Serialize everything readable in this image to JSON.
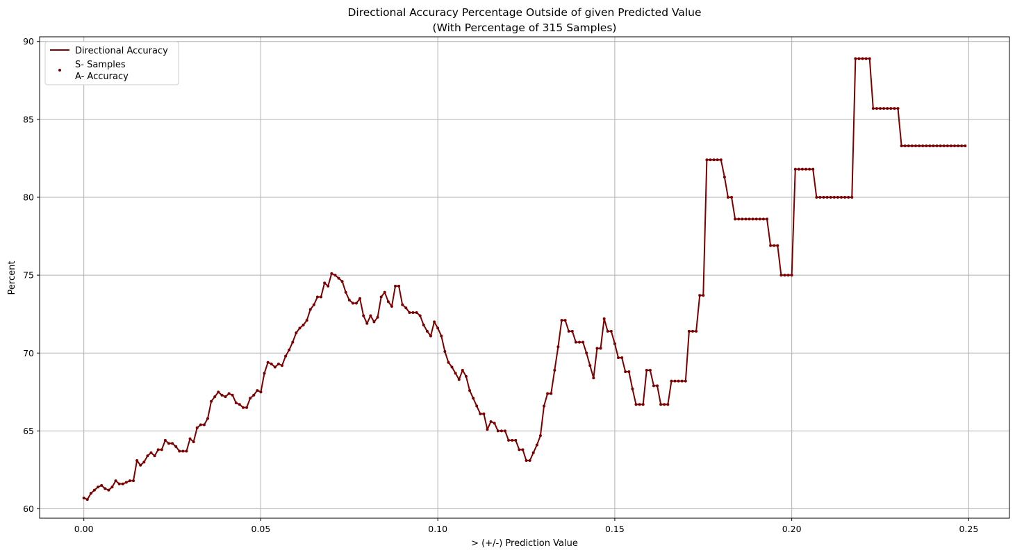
{
  "chart_data": {
    "type": "line",
    "title": "Directional Accuracy Percentage Outside of given Predicted Value",
    "subtitle": "(With Percentage of 315 Samples)",
    "xlabel": "> (+/-) Prediction Value",
    "ylabel": "Percent",
    "xlim": [
      -0.0125,
      0.2615
    ],
    "ylim": [
      59.4,
      90.3
    ],
    "xticks": [
      0.0,
      0.05,
      0.1,
      0.15,
      0.2,
      0.25
    ],
    "xtick_labels": [
      "0.00",
      "0.05",
      "0.10",
      "0.15",
      "0.20",
      "0.25"
    ],
    "yticks": [
      60,
      65,
      70,
      75,
      80,
      85,
      90
    ],
    "ytick_labels": [
      "60",
      "65",
      "70",
      "75",
      "80",
      "85",
      "90"
    ],
    "grid": true,
    "legend_position": "upper-left",
    "legend": [
      "Directional Accuracy",
      "S- Samples",
      "A- Accuracy"
    ],
    "color": "#7b0000",
    "series": [
      {
        "name": "Directional Accuracy",
        "x_start": 0.0,
        "x_step": 0.001,
        "y": [
          60.7,
          60.6,
          61.0,
          61.2,
          61.4,
          61.5,
          61.3,
          61.2,
          61.4,
          61.8,
          61.6,
          61.6,
          61.7,
          61.8,
          61.8,
          63.1,
          62.8,
          63.0,
          63.4,
          63.6,
          63.4,
          63.8,
          63.8,
          64.4,
          64.2,
          64.2,
          64.0,
          63.7,
          63.7,
          63.7,
          64.5,
          64.3,
          65.2,
          65.4,
          65.4,
          65.8,
          66.9,
          67.2,
          67.5,
          67.3,
          67.2,
          67.4,
          67.3,
          66.8,
          66.7,
          66.5,
          66.5,
          67.1,
          67.3,
          67.6,
          67.5,
          68.7,
          69.4,
          69.3,
          69.1,
          69.3,
          69.2,
          69.8,
          70.2,
          70.7,
          71.3,
          71.6,
          71.8,
          72.1,
          72.8,
          73.1,
          73.6,
          73.6,
          74.5,
          74.3,
          75.1,
          75.0,
          74.8,
          74.6,
          73.9,
          73.4,
          73.2,
          73.2,
          73.5,
          72.4,
          71.9,
          72.4,
          72.0,
          72.3,
          73.6,
          73.9,
          73.3,
          73.0,
          74.3,
          74.3,
          73.1,
          72.9,
          72.6,
          72.6,
          72.6,
          72.4,
          71.8,
          71.4,
          71.1,
          72.0,
          71.6,
          71.1,
          70.1,
          69.4,
          69.1,
          68.7,
          68.3,
          68.9,
          68.5,
          67.6,
          67.1,
          66.6,
          66.1,
          66.1,
          65.1,
          65.6,
          65.5,
          65.0,
          65.0,
          65.0,
          64.4,
          64.4,
          64.4,
          63.8,
          63.8,
          63.1,
          63.1,
          63.6,
          64.1,
          64.7,
          66.6,
          67.4,
          67.4,
          68.9,
          70.4,
          72.1,
          72.1,
          71.4,
          71.4,
          70.7,
          70.7,
          70.7,
          70.0,
          69.2,
          68.4,
          70.3,
          70.3,
          72.2,
          71.4,
          71.4,
          70.6,
          69.7,
          69.7,
          68.8,
          68.8,
          67.7,
          66.7,
          66.7,
          66.7,
          68.9,
          68.9,
          67.9,
          67.9,
          66.7,
          66.7,
          66.7,
          68.2,
          68.2,
          68.2,
          68.2,
          68.2,
          71.4,
          71.4,
          71.4,
          73.7,
          73.7,
          82.4,
          82.4,
          82.4,
          82.4,
          82.4,
          81.3,
          80.0,
          80.0,
          78.6,
          78.6,
          78.6,
          78.6,
          78.6,
          78.6,
          78.6,
          78.6,
          78.6,
          78.6,
          76.9,
          76.9,
          76.9,
          75.0,
          75.0,
          75.0,
          75.0,
          81.8,
          81.8,
          81.8,
          81.8,
          81.8,
          81.8,
          80.0,
          80.0,
          80.0,
          80.0,
          80.0,
          80.0,
          80.0,
          80.0,
          80.0,
          80.0,
          80.0,
          88.9,
          88.9,
          88.9,
          88.9,
          88.9,
          85.7,
          85.7,
          85.7,
          85.7,
          85.7,
          85.7,
          85.7,
          85.7,
          83.3,
          83.3,
          83.3,
          83.3,
          83.3,
          83.3,
          83.3,
          83.3,
          83.3,
          83.3,
          83.3,
          83.3,
          83.3,
          83.3,
          83.3,
          83.3,
          83.3,
          83.3,
          83.3
        ]
      }
    ]
  }
}
